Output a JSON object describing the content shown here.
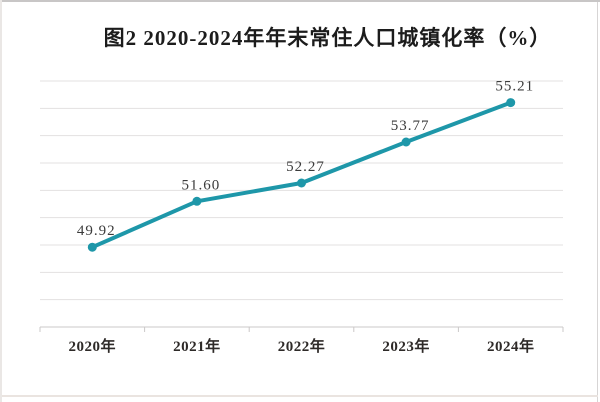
{
  "chart_data": {
    "type": "line",
    "title": "图2  2020-2024年年末常住人口城镇化率（%）",
    "categories": [
      "2020年",
      "2021年",
      "2022年",
      "2023年",
      "2024年"
    ],
    "values": [
      49.92,
      51.6,
      52.27,
      53.77,
      55.21
    ],
    "data_labels": [
      "49.92",
      "51.60",
      "52.27",
      "53.77",
      "55.21"
    ],
    "xlabel": "",
    "ylabel": "",
    "ylim": [
      47,
      56
    ],
    "grid_step": 1,
    "grid": "horizontal-only",
    "legend_position": "none",
    "y_tick_labels_visible": false,
    "colors": {
      "line": "#1e97a9",
      "marker": "#1e97a9",
      "gridline": "#e3e1e1",
      "axis": "#cbc8c8",
      "data_label": "#3b3b3b",
      "x_label": "#2e2a28",
      "title": "#1c1c1c",
      "background": "#ffffff"
    }
  }
}
